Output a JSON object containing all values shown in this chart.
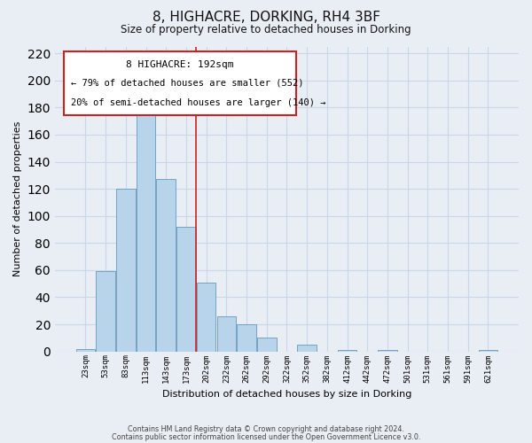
{
  "title": "8, HIGHACRE, DORKING, RH4 3BF",
  "subtitle": "Size of property relative to detached houses in Dorking",
  "xlabel": "Distribution of detached houses by size in Dorking",
  "ylabel": "Number of detached properties",
  "bin_labels": [
    "23sqm",
    "53sqm",
    "83sqm",
    "113sqm",
    "143sqm",
    "173sqm",
    "202sqm",
    "232sqm",
    "262sqm",
    "292sqm",
    "322sqm",
    "352sqm",
    "382sqm",
    "412sqm",
    "442sqm",
    "472sqm",
    "501sqm",
    "531sqm",
    "561sqm",
    "591sqm",
    "621sqm"
  ],
  "bar_values": [
    2,
    59,
    120,
    180,
    127,
    92,
    51,
    26,
    20,
    10,
    0,
    5,
    0,
    1,
    0,
    1,
    0,
    0,
    0,
    0,
    1
  ],
  "bar_color": "#b8d4ea",
  "highlight_bar_color": "#cc2222",
  "red_line_x": 5.5,
  "ylim": [
    0,
    225
  ],
  "yticks": [
    0,
    20,
    40,
    60,
    80,
    100,
    120,
    140,
    160,
    180,
    200,
    220
  ],
  "annotation_title": "8 HIGHACRE: 192sqm",
  "annotation_line1": "← 79% of detached houses are smaller (552)",
  "annotation_line2": "20% of semi-detached houses are larger (140) →",
  "annotation_box_facecolor": "#ffffff",
  "annotation_box_edgecolor": "#cc2222",
  "grid_color": "#c8d8e8",
  "background_color": "#e8eef4",
  "plot_bg_color": "#e8eef4",
  "footer1": "Contains HM Land Registry data © Crown copyright and database right 2024.",
  "footer2": "Contains public sector information licensed under the Open Government Licence v3.0."
}
